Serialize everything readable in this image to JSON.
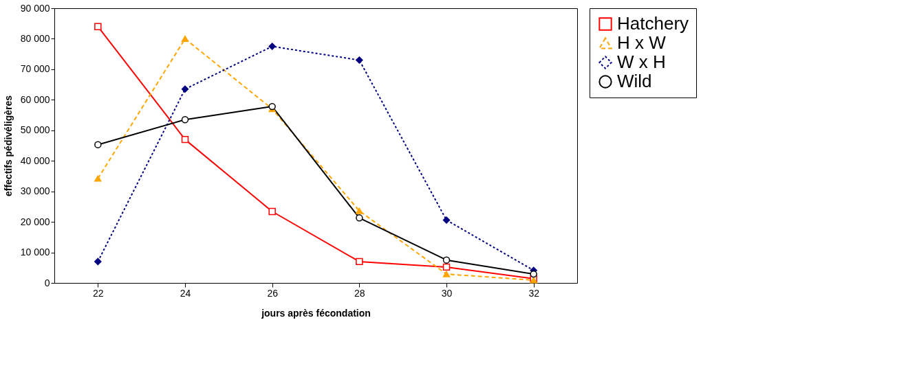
{
  "chart_data": {
    "type": "line",
    "xlabel": "jours après fécondation",
    "ylabel": "effectifs  pédivéligères",
    "categories": [
      "22",
      "24",
      "26",
      "28",
      "30",
      "32"
    ],
    "series": [
      {
        "name": "Hatchery",
        "color": "#ff0000",
        "marker": "square",
        "line_style": "solid",
        "values": [
          84000,
          47000,
          23400,
          7000,
          5200,
          1400
        ]
      },
      {
        "name": "H x W",
        "color": "#ffa500",
        "marker": "triangle",
        "line_style": "dashed",
        "values": [
          34200,
          80000,
          57000,
          23600,
          2900,
          900
        ]
      },
      {
        "name": "W x H",
        "color": "#000080",
        "marker": "diamond",
        "line_style": "dotted",
        "values": [
          7000,
          63500,
          77500,
          73000,
          20600,
          4100
        ]
      },
      {
        "name": "Wild",
        "color": "#000000",
        "marker": "circle",
        "line_style": "solid",
        "values": [
          45300,
          53500,
          57800,
          21300,
          7500,
          2900
        ]
      }
    ],
    "ylim": [
      0,
      90000
    ],
    "yticks": [
      {
        "value": 0,
        "label": "0"
      },
      {
        "value": 10000,
        "label": "10 000"
      },
      {
        "value": 20000,
        "label": "20 000"
      },
      {
        "value": 30000,
        "label": "30 000"
      },
      {
        "value": 40000,
        "label": "40 000"
      },
      {
        "value": 50000,
        "label": "50 000"
      },
      {
        "value": 60000,
        "label": "60 000"
      },
      {
        "value": 70000,
        "label": "70 000"
      },
      {
        "value": 80000,
        "label": "80 000"
      },
      {
        "value": 90000,
        "label": "90 000"
      }
    ],
    "grid": false,
    "legend": "right"
  }
}
